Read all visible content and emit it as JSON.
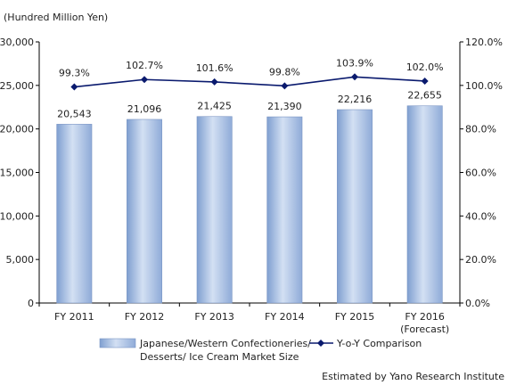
{
  "chart_data": {
    "type": "bar",
    "unit_label": "(Hundred Million Yen)",
    "categories": [
      "FY 2011",
      "FY 2012",
      "FY 2013",
      "FY 2014",
      "FY 2015",
      "FY 2016"
    ],
    "category_sublabels": [
      "",
      "",
      "",
      "",
      "",
      "(Forecast)"
    ],
    "series": [
      {
        "name": "Japanese/Western Confectioneries/ Desserts/ Ice Cream Market Size",
        "legend_lines": [
          "Japanese/Western Confectioneries/",
          "Desserts/ Ice Cream Market Size"
        ],
        "type": "bar",
        "axis": "left",
        "values": [
          20543,
          21096,
          21425,
          21390,
          22216,
          22655
        ],
        "labels": [
          "20,543",
          "21,096",
          "21,425",
          "21,390",
          "22,216",
          "22,655"
        ],
        "color": "#a8c0e4"
      },
      {
        "name": "Y-o-Y Comparison",
        "legend_lines": [
          "Y-o-Y Comparison"
        ],
        "type": "line",
        "axis": "right",
        "values": [
          99.3,
          102.7,
          101.6,
          99.8,
          103.9,
          102.0
        ],
        "labels": [
          "99.3%",
          "102.7%",
          "101.6%",
          "99.8%",
          "103.9%",
          "102.0%"
        ],
        "color": "#0a1a6e"
      }
    ],
    "y_left": {
      "range": [
        0,
        30000
      ],
      "ticks": [
        0,
        5000,
        10000,
        15000,
        20000,
        25000,
        30000
      ],
      "tick_labels": [
        "0",
        "5,000",
        "10,000",
        "15,000",
        "20,000",
        "25,000",
        "30,000"
      ]
    },
    "y_right": {
      "range": [
        0,
        120
      ],
      "ticks": [
        0,
        20,
        40,
        60,
        80,
        100,
        120
      ],
      "tick_labels": [
        "0.0%",
        "20.0%",
        "40.0%",
        "60.0%",
        "80.0%",
        "100.0%",
        "120.0%"
      ]
    },
    "grid": false,
    "legend_position": "bottom",
    "source_note": "Estimated by Yano Research Institute"
  }
}
